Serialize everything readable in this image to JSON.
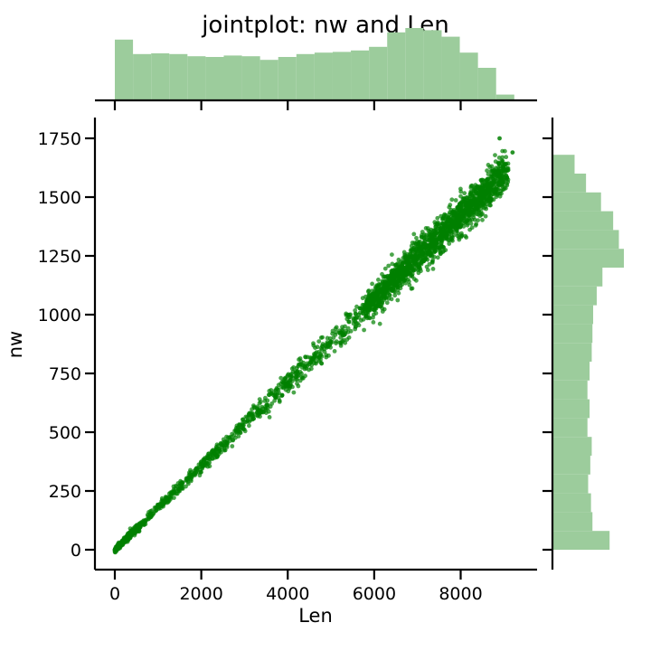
{
  "chart_data": {
    "type": "scatter",
    "title": "jointplot: nw and Len",
    "xlabel": "Len",
    "ylabel": "nw",
    "xlim": [
      -480,
      9780
    ],
    "ylim": [
      -90,
      1840
    ],
    "xticks": [
      0,
      2000,
      4000,
      6000,
      8000
    ],
    "yticks": [
      0,
      250,
      500,
      750,
      1000,
      1250,
      1500,
      1750
    ],
    "grid": false,
    "point_color": "#008000",
    "hist_color": "#9ccc9c",
    "relationship": {
      "slope": 0.1775,
      "intercept": 0,
      "note_x_max": 9250,
      "y_max": 1750
    },
    "scatter_sample": [
      [
        0,
        0
      ],
      [
        300,
        52
      ],
      [
        700,
        125
      ],
      [
        1200,
        213
      ],
      [
        1800,
        320
      ],
      [
        2500,
        444
      ],
      [
        3200,
        568
      ],
      [
        4000,
        710
      ],
      [
        4600,
        817
      ],
      [
        5200,
        923
      ],
      [
        5800,
        1030
      ],
      [
        6300,
        1118
      ],
      [
        6800,
        1207
      ],
      [
        7300,
        1296
      ],
      [
        7800,
        1385
      ],
      [
        8300,
        1473
      ],
      [
        8700,
        1544
      ],
      [
        9100,
        1615
      ],
      [
        8900,
        1750
      ],
      [
        9200,
        1690
      ]
    ],
    "x_marginal_hist": {
      "bin_edges": [
        0,
        420,
        840,
        1260,
        1680,
        2100,
        2520,
        2940,
        3360,
        3780,
        4200,
        4620,
        5040,
        5460,
        5880,
        6300,
        6720,
        7140,
        7560,
        7980,
        8400,
        8820,
        9240
      ],
      "heights": [
        0.84,
        0.64,
        0.65,
        0.64,
        0.61,
        0.6,
        0.62,
        0.61,
        0.56,
        0.6,
        0.64,
        0.66,
        0.67,
        0.69,
        0.74,
        0.94,
        1.0,
        0.97,
        0.88,
        0.66,
        0.45,
        0.08
      ]
    },
    "y_marginal_hist": {
      "bin_edges": [
        0,
        80,
        160,
        240,
        320,
        400,
        480,
        560,
        640,
        720,
        800,
        880,
        960,
        1040,
        1120,
        1200,
        1280,
        1360,
        1440,
        1520,
        1600,
        1680
      ],
      "heights": [
        0.8,
        0.56,
        0.54,
        0.5,
        0.53,
        0.55,
        0.49,
        0.52,
        0.49,
        0.52,
        0.55,
        0.56,
        0.57,
        0.62,
        0.7,
        1.0,
        0.93,
        0.85,
        0.68,
        0.47,
        0.31
      ]
    }
  }
}
